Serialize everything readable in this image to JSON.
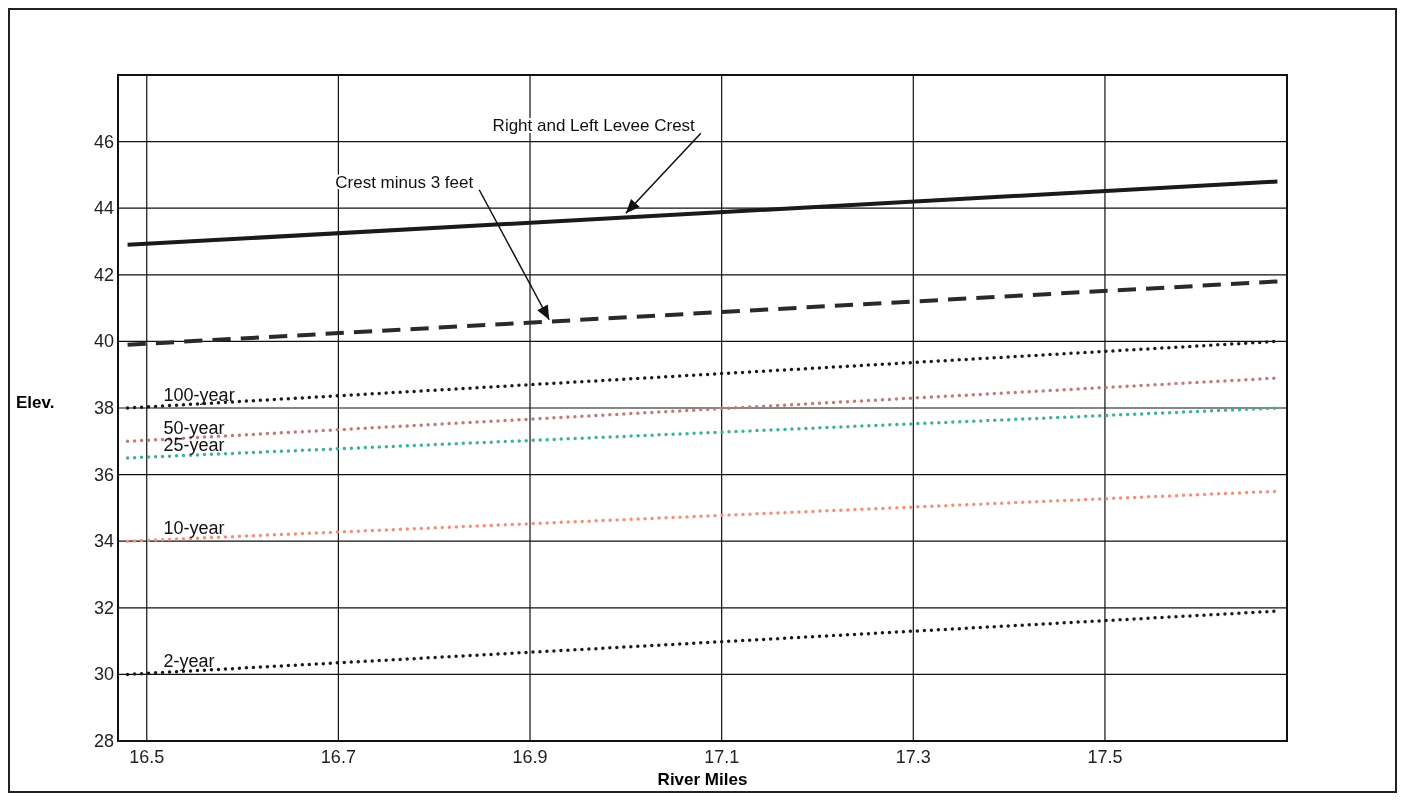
{
  "chart_data": {
    "type": "line",
    "xlabel": "River Miles",
    "ylabel": "Elev.",
    "xlim": [
      16.47,
      17.69
    ],
    "xticks": [
      16.5,
      16.7,
      16.9,
      17.1,
      17.3,
      17.5
    ],
    "ylim": [
      28,
      48
    ],
    "yticks": [
      28,
      30,
      32,
      34,
      36,
      38,
      40,
      42,
      44,
      46
    ],
    "grid": true,
    "legend": false,
    "x": [
      16.48,
      17.68
    ],
    "series": [
      {
        "values": [
          42.9,
          44.8
        ],
        "color": "#1a1a1a",
        "line_style": "solid"
      },
      {
        "values": [
          39.9,
          41.8
        ],
        "color": "#2a2a2a",
        "line_style": "dashed"
      },
      {
        "name": "100-year",
        "values": [
          38.0,
          40.0
        ],
        "color": "#1a1a1a",
        "line_style": "dotted"
      },
      {
        "name": "50-year",
        "values": [
          37.0,
          38.9
        ],
        "color": "#c07a7a",
        "line_style": "dotted"
      },
      {
        "name": "25-year",
        "values": [
          36.5,
          38.0
        ],
        "color": "#3fb09c",
        "line_style": "dotted"
      },
      {
        "name": "10-year",
        "values": [
          34.0,
          35.5
        ],
        "color": "#f0907a",
        "line_style": "dotted"
      },
      {
        "name": "2-year",
        "values": [
          30.0,
          31.9
        ],
        "color": "#1a1a1a",
        "line_style": "dotted"
      }
    ],
    "annotations": [
      {
        "text": "Right and Left Levee Crest",
        "x": 17.0,
        "y": 43.85
      },
      {
        "text": "Crest minus 3 feet",
        "x": 16.92,
        "y": 40.65
      }
    ]
  }
}
